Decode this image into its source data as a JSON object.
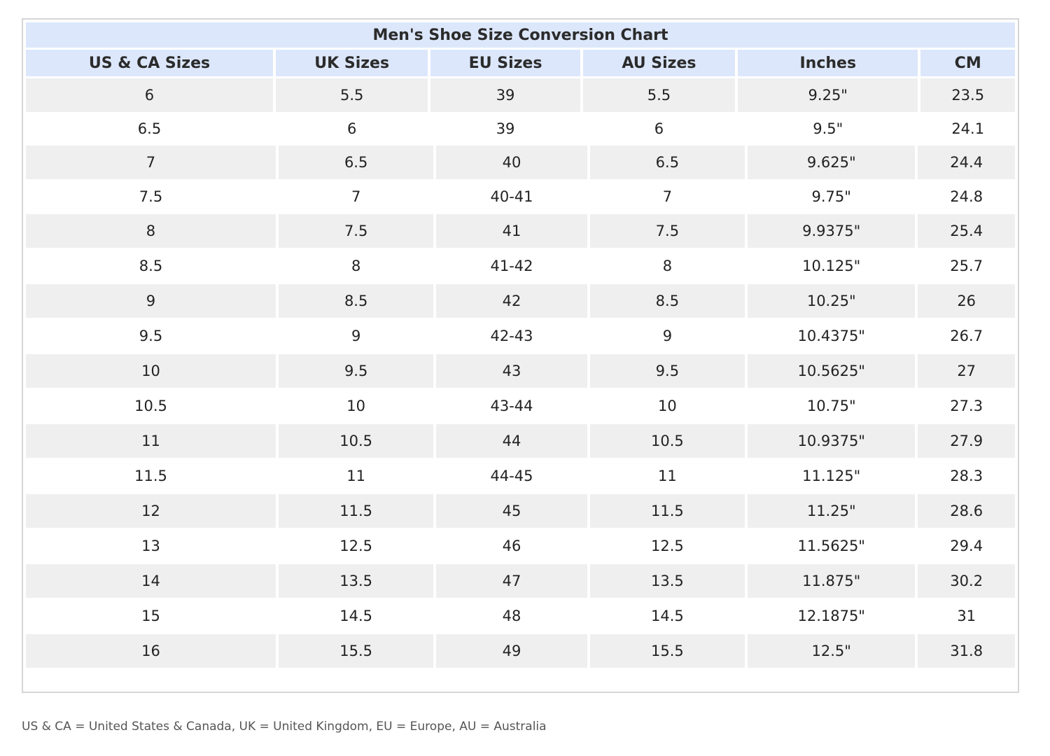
{
  "table": {
    "title": "Men's Shoe Size Conversion Chart",
    "columns": [
      "US & CA Sizes",
      "UK Sizes",
      "EU Sizes",
      "AU Sizes",
      "Inches",
      "CM"
    ],
    "rows": [
      [
        "6",
        "5.5",
        "39",
        "5.5",
        "9.25\"",
        "23.5"
      ],
      [
        "6.5",
        "6",
        "39",
        "6",
        "9.5\"",
        "24.1"
      ],
      [
        "7",
        "6.5",
        "40",
        "6.5",
        "9.625\"",
        "24.4"
      ],
      [
        "7.5",
        "7",
        "40-41",
        "7",
        "9.75\"",
        "24.8"
      ],
      [
        "8",
        "7.5",
        "41",
        "7.5",
        "9.9375\"",
        "25.4"
      ],
      [
        "8.5",
        "8",
        "41-42",
        "8",
        "10.125\"",
        "25.7"
      ],
      [
        "9",
        "8.5",
        "42",
        "8.5",
        "10.25\"",
        "26"
      ],
      [
        "9.5",
        "9",
        "42-43",
        "9",
        "10.4375\"",
        "26.7"
      ],
      [
        "10",
        "9.5",
        "43",
        "9.5",
        "10.5625\"",
        "27"
      ],
      [
        "10.5",
        "10",
        "43-44",
        "10",
        "10.75\"",
        "27.3"
      ],
      [
        "11",
        "10.5",
        "44",
        "10.5",
        "10.9375\"",
        "27.9"
      ],
      [
        "11.5",
        "11",
        "44-45",
        "11",
        "11.125\"",
        "28.3"
      ],
      [
        "12",
        "11.5",
        "45",
        "11.5",
        "11.25\"",
        "28.6"
      ],
      [
        "13",
        "12.5",
        "46",
        "12.5",
        "11.5625\"",
        "29.4"
      ],
      [
        "14",
        "13.5",
        "47",
        "13.5",
        "11.875\"",
        "30.2"
      ],
      [
        "15",
        "14.5",
        "48",
        "14.5",
        "12.1875\"",
        "31"
      ],
      [
        "16",
        "15.5",
        "49",
        "15.5",
        "12.5\"",
        "31.8"
      ]
    ]
  },
  "footnote": "US & CA = United States & Canada, UK = United Kingdom, EU = Europe, AU = Australia",
  "colors": {
    "header_bg": "#dce7fb",
    "stripe_bg": "#efefef",
    "border": "#d6d6d6"
  }
}
